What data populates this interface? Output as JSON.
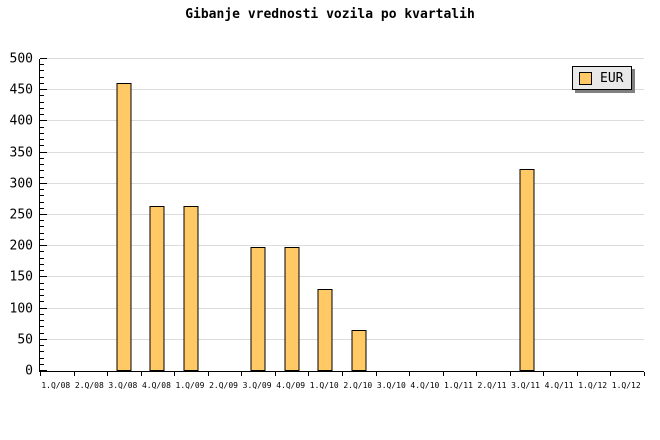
{
  "title": "Gibanje vrednosti vozila po kvartalih",
  "legend": {
    "label": "EUR",
    "position": "top-right"
  },
  "colors": {
    "bar_fill": "#FFC966",
    "bar_border": "#000000",
    "gridline": "#DCDCDC",
    "axis": "#000000",
    "legend_bg": "#E8E8E8",
    "legend_shadow": "#808080",
    "background": "#FFFFFF",
    "text": "#000000"
  },
  "chart_data": {
    "type": "bar",
    "title": "Gibanje vrednosti vozila po kvartalih",
    "categories": [
      "1.Q/08",
      "2.Q/08",
      "3.Q/08",
      "4.Q/08",
      "1.Q/09",
      "2.Q/09",
      "3.Q/09",
      "4.Q/09",
      "1.Q/10",
      "2.Q/10",
      "3.Q/10",
      "4.Q/10",
      "1.Q/11",
      "2.Q/11",
      "3.Q/11",
      "4.Q/11",
      "1.Q/12",
      "1.Q/12"
    ],
    "series": [
      {
        "name": "EUR",
        "values": [
          0,
          0,
          462,
          264,
          264,
          0,
          198,
          198,
          132,
          66,
          0,
          0,
          0,
          0,
          324,
          0,
          0,
          0
        ]
      }
    ],
    "xlabel": "",
    "ylabel": "",
    "ylim": [
      0,
      500
    ],
    "ytick_step": 50,
    "y_minor_step": 10,
    "ytick_labels": [
      "0",
      "50",
      "100",
      "150",
      "200",
      "250",
      "300",
      "350",
      "400",
      "450",
      "500"
    ],
    "grid": true,
    "legend_position": "top-right"
  }
}
